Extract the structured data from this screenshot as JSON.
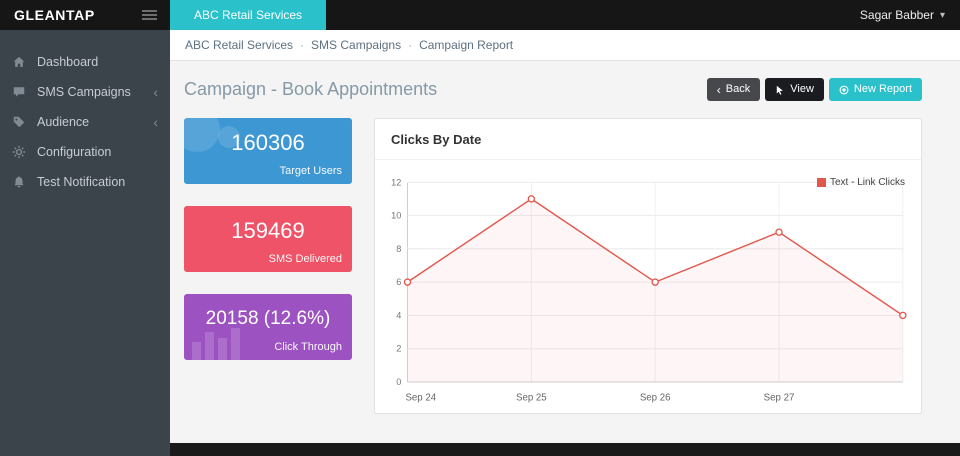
{
  "topbar": {
    "logo": "GLEANTAP",
    "active_tab": "ABC Retail Services",
    "user_name": "Sagar Babber",
    "colors": {
      "bar": "#161616",
      "tab": "#2ac1ca"
    }
  },
  "sidebar": {
    "items": [
      {
        "label": "Dashboard",
        "icon": "home-icon",
        "has_submenu": false
      },
      {
        "label": "SMS Campaigns",
        "icon": "chat-icon",
        "has_submenu": true
      },
      {
        "label": "Audience",
        "icon": "tag-icon",
        "has_submenu": true
      },
      {
        "label": "Configuration",
        "icon": "gear-icon",
        "has_submenu": false
      },
      {
        "label": "Test Notification",
        "icon": "bell-icon",
        "has_submenu": false
      }
    ]
  },
  "breadcrumb": {
    "items": [
      "ABC Retail Services",
      "SMS Campaigns",
      "Campaign Report"
    ],
    "separator": "·"
  },
  "page": {
    "title": "Campaign - Book Appointments"
  },
  "actions": {
    "back_label": "Back",
    "view_label": "View",
    "new_report_label": "New Report",
    "new_report_color": "#2ac1ca"
  },
  "stats": [
    {
      "value": "160306",
      "label": "Target Users",
      "color": "#3d97d3"
    },
    {
      "value": "159469",
      "label": "SMS Delivered",
      "color": "#ee5368"
    },
    {
      "value": "20158 (12.6%)",
      "label": "Click Through",
      "color": "#9c53c1"
    }
  ],
  "chart_data": {
    "type": "line",
    "title": "Clicks By Date",
    "x": [
      "Sep 24",
      "Sep 25",
      "Sep 26",
      "Sep 27",
      ""
    ],
    "series": [
      {
        "name": "Text - Link Clicks",
        "values": [
          6,
          11,
          6,
          9,
          4
        ],
        "color": "#e2574c"
      }
    ],
    "xlabel": "",
    "ylabel": "",
    "ylim": [
      0,
      12
    ],
    "yticks": [
      0,
      2,
      4,
      6,
      8,
      10,
      12
    ],
    "grid": true,
    "legend_position": "top-right",
    "fill_opacity": 0.05
  }
}
